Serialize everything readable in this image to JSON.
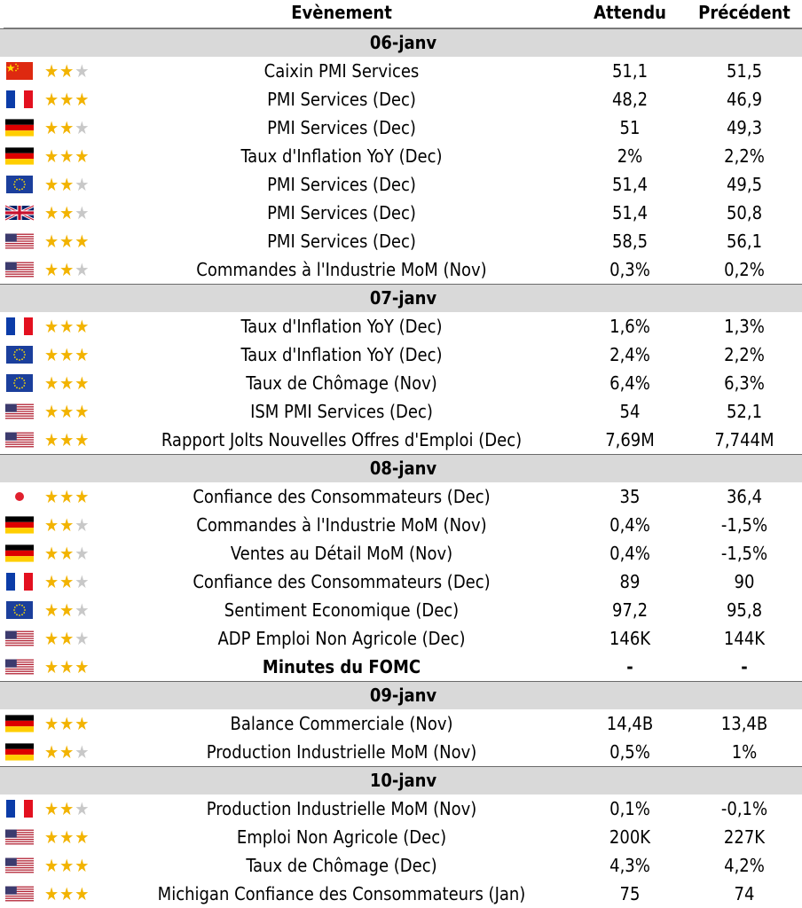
{
  "header": {
    "event": "Evènement",
    "expected": "Attendu",
    "previous": "Précédent"
  },
  "colors": {
    "date_row_bg": "#d9d9d9",
    "star_on": "#f2b300",
    "star_off": "#c8c8c8"
  },
  "rows": [
    {
      "type": "date",
      "label": "06-janv"
    },
    {
      "type": "event",
      "flag": "cn",
      "stars": 2,
      "event": "Caixin PMI Services",
      "expected": "51,1",
      "previous": "51,5"
    },
    {
      "type": "event",
      "flag": "fr",
      "stars": 3,
      "event": "PMI Services  (Dec)",
      "expected": "48,2",
      "previous": "46,9"
    },
    {
      "type": "event",
      "flag": "de",
      "stars": 2,
      "event": "PMI Services  (Dec)",
      "expected": "51",
      "previous": "49,3"
    },
    {
      "type": "event",
      "flag": "de",
      "stars": 3,
      "event": "Taux d'Inflation YoY (Dec)",
      "expected": "2%",
      "previous": "2,2%"
    },
    {
      "type": "event",
      "flag": "eu",
      "stars": 2,
      "event": "PMI Services (Dec)",
      "expected": "51,4",
      "previous": "49,5"
    },
    {
      "type": "event",
      "flag": "gb",
      "stars": 2,
      "event": "PMI Services  (Dec)",
      "expected": "51,4",
      "previous": "50,8"
    },
    {
      "type": "event",
      "flag": "us",
      "stars": 3,
      "event": "PMI Services  (Dec)",
      "expected": "58,5",
      "previous": "56,1"
    },
    {
      "type": "event",
      "flag": "us",
      "stars": 2,
      "event": "Commandes à l'Industrie MoM (Nov)",
      "expected": "0,3%",
      "previous": "0,2%"
    },
    {
      "type": "date",
      "label": "07-janv"
    },
    {
      "type": "event",
      "flag": "fr",
      "stars": 3,
      "event": "Taux d'Inflation YoY (Dec)",
      "expected": "1,6%",
      "previous": "1,3%"
    },
    {
      "type": "event",
      "flag": "eu",
      "stars": 3,
      "event": "Taux d'Inflation YoY (Dec)",
      "expected": "2,4%",
      "previous": "2,2%"
    },
    {
      "type": "event",
      "flag": "eu",
      "stars": 3,
      "event": "Taux de Chômage (Nov)",
      "expected": "6,4%",
      "previous": "6,3%"
    },
    {
      "type": "event",
      "flag": "us",
      "stars": 3,
      "event": "ISM PMI Services (Dec)",
      "expected": "54",
      "previous": "52,1"
    },
    {
      "type": "event",
      "flag": "us",
      "stars": 3,
      "event": "Rapport Jolts Nouvelles Offres d'Emploi (Dec)",
      "expected": "7,69M",
      "previous": "7,744M"
    },
    {
      "type": "date",
      "label": "08-janv"
    },
    {
      "type": "event",
      "flag": "jp",
      "stars": 3,
      "event": "Confiance des Consommateurs (Dec)",
      "expected": "35",
      "previous": "36,4"
    },
    {
      "type": "event",
      "flag": "de",
      "stars": 2,
      "event": "Commandes à l'Industrie MoM (Nov)",
      "expected": "0,4%",
      "previous": "-1,5%"
    },
    {
      "type": "event",
      "flag": "de",
      "stars": 2,
      "event": "Ventes au Détail MoM (Nov)",
      "expected": "0,4%",
      "previous": "-1,5%"
    },
    {
      "type": "event",
      "flag": "fr",
      "stars": 2,
      "event": "Confiance des Consommateurs (Dec)",
      "expected": "89",
      "previous": "90"
    },
    {
      "type": "event",
      "flag": "eu",
      "stars": 2,
      "event": "Sentiment Economique (Dec)",
      "expected": "97,2",
      "previous": "95,8"
    },
    {
      "type": "event",
      "flag": "us",
      "stars": 2,
      "event": "ADP Emploi Non Agricole (Dec)",
      "expected": "146K",
      "previous": "144K"
    },
    {
      "type": "event",
      "flag": "us",
      "stars": 3,
      "event": "Minutes du FOMC",
      "expected": "-",
      "previous": "-",
      "bold": true
    },
    {
      "type": "date",
      "label": "09-janv"
    },
    {
      "type": "event",
      "flag": "de",
      "stars": 3,
      "event": "Balance Commerciale (Nov)",
      "expected": "14,4B",
      "previous": "13,4B"
    },
    {
      "type": "event",
      "flag": "de",
      "stars": 2,
      "event": "Production Industrielle MoM (Nov)",
      "expected": "0,5%",
      "previous": "1%"
    },
    {
      "type": "date",
      "label": "10-janv"
    },
    {
      "type": "event",
      "flag": "fr",
      "stars": 2,
      "event": "Production Industrielle MoM (Nov)",
      "expected": "0,1%",
      "previous": "-0,1%"
    },
    {
      "type": "event",
      "flag": "us",
      "stars": 3,
      "event": "Emploi Non Agricole (Dec)",
      "expected": "200K",
      "previous": "227K"
    },
    {
      "type": "event",
      "flag": "us",
      "stars": 3,
      "event": "Taux de Chômage (Dec)",
      "expected": "4,3%",
      "previous": "4,2%"
    },
    {
      "type": "event",
      "flag": "us",
      "stars": 3,
      "event": "Michigan Confiance des Consommateurs (Jan)",
      "expected": "75",
      "previous": "74"
    }
  ]
}
